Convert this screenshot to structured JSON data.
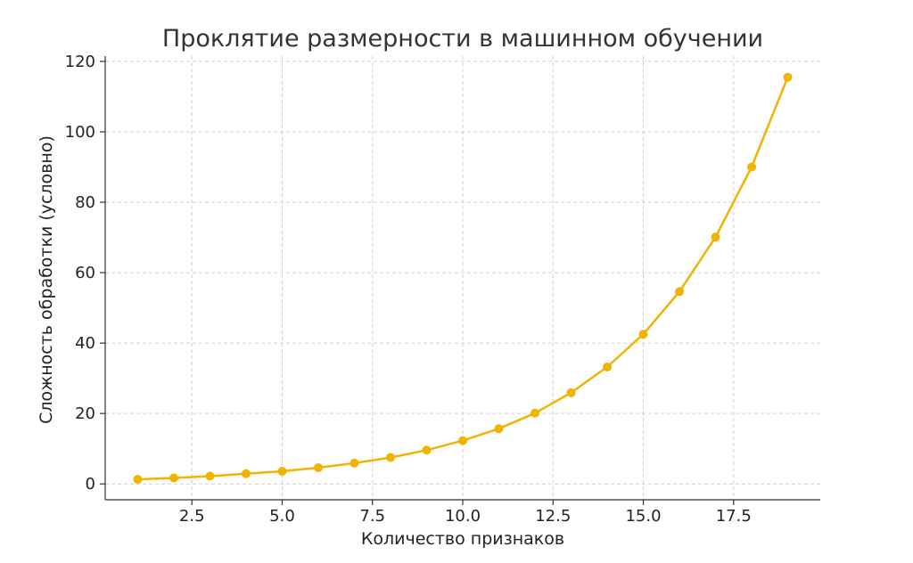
{
  "chart_data": {
    "type": "line",
    "title": "Проклятие размерности в машинном обучении",
    "xlabel": "Количество признаков",
    "ylabel": "Сложность обработки (условно)",
    "xlim": [
      0.1,
      19.9
    ],
    "ylim": [
      -4.5,
      121.5
    ],
    "x_ticks": [
      2.5,
      5.0,
      7.5,
      10.0,
      12.5,
      15.0,
      17.5
    ],
    "x_tick_labels": [
      "2.5",
      "5.0",
      "7.5",
      "10.0",
      "12.5",
      "15.0",
      "17.5"
    ],
    "y_ticks": [
      0,
      20,
      40,
      60,
      80,
      100,
      120
    ],
    "y_tick_labels": [
      "0",
      "20",
      "40",
      "60",
      "80",
      "100",
      "120"
    ],
    "grid": true,
    "legend": "none",
    "series": [
      {
        "color": "#f0b400",
        "x": [
          1,
          2,
          3,
          4,
          5,
          6,
          7,
          8,
          9,
          10,
          11,
          12,
          13,
          14,
          15,
          16,
          17,
          18,
          19
        ],
        "values": [
          1.3,
          1.7,
          2.2,
          2.9,
          3.6,
          4.6,
          5.9,
          7.5,
          9.6,
          12.3,
          15.7,
          20.1,
          25.9,
          33.2,
          42.5,
          54.6,
          70.1,
          90.0,
          115.5
        ]
      }
    ]
  }
}
